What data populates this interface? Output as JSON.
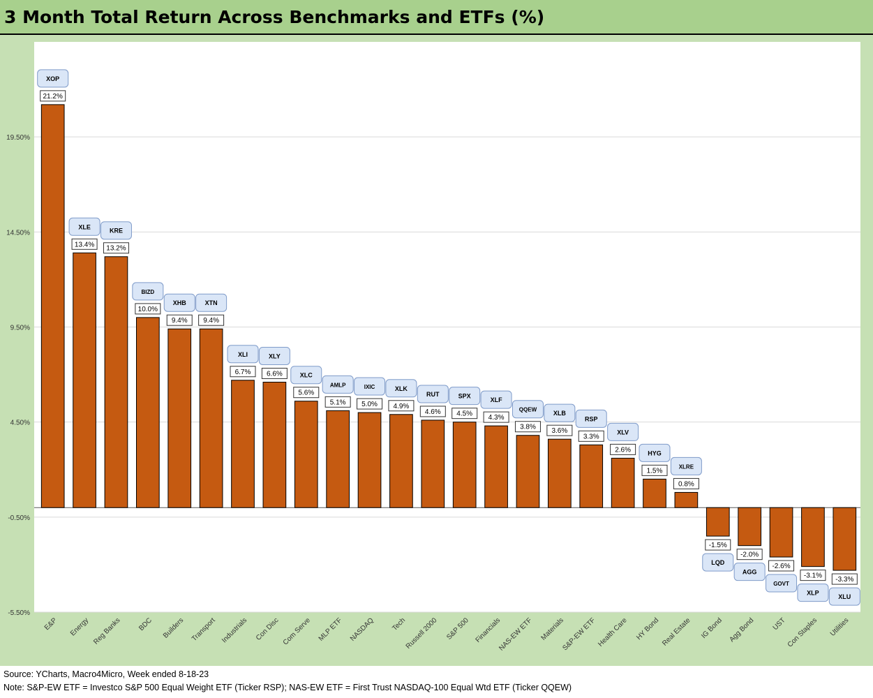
{
  "title": "3 Month Total Return Across Benchmarks and ETFs (%)",
  "colors": {
    "header_bg": "#a8d08d",
    "frame_bg": "#c6e0b4",
    "bar_fill": "#c55a11",
    "label_box_bg": "#dae6f7",
    "label_box_border": "#7f9bc9"
  },
  "footer": {
    "source": "Source: YCharts, Macro4Micro, Week ended 8-18-23",
    "note": "Note: S&P-EW ETF = Investco S&P 500 Equal Weight ETF (Ticker RSP); NAS-EW ETF = First Trust NASDAQ-100 Equal Wtd ETF (Ticker QQEW)"
  },
  "chart_data": {
    "type": "bar",
    "title": "3 Month Total Return Across Benchmarks and ETFs (%)",
    "xlabel": "",
    "ylabel": "",
    "ylim": [
      -5.5,
      24.5
    ],
    "y_ticks": [
      19.5,
      14.5,
      9.5,
      4.5,
      -0.5,
      -5.5
    ],
    "y_tick_labels": [
      "19.50%",
      "14.50%",
      "9.50%",
      "4.50%",
      "-0.50%",
      "-5.50%"
    ],
    "grid": true,
    "legend": "none",
    "categories": [
      "E&P",
      "Energy",
      "Reg Banks",
      "BDC",
      "Builders",
      "Transport",
      "Industrials",
      "Con Disc",
      "Com Serve",
      "MLP ETF",
      "NASDAQ",
      "Tech",
      "Russell 2000",
      "S&P 500",
      "Financials",
      "NAS-EW ETF",
      "Materials",
      "S&P-EW ETF",
      "Health Care",
      "HY Bond",
      "Real Estate",
      "IG Bond",
      "Agg Bond",
      "UST",
      "Con Staples",
      "Utilities"
    ],
    "tickers": [
      "XOP",
      "XLE",
      "KRE",
      "BIZD",
      "XHB",
      "XTN",
      "XLI",
      "XLY",
      "XLC",
      "AMLP",
      "IXIC",
      "XLK",
      "RUT",
      "SPX",
      "XLF",
      "QQEW",
      "XLB",
      "RSP",
      "XLV",
      "HYG",
      "XLRE",
      "LQD",
      "AGG",
      "GOVT",
      "XLP",
      "XLU"
    ],
    "values": [
      21.2,
      13.4,
      13.2,
      10.0,
      9.4,
      9.4,
      6.7,
      6.6,
      5.6,
      5.1,
      5.0,
      4.9,
      4.6,
      4.5,
      4.3,
      3.8,
      3.6,
      3.3,
      2.6,
      1.5,
      0.8,
      -1.5,
      -2.0,
      -2.6,
      -3.1,
      -3.3
    ],
    "value_labels": [
      "21.2%",
      "13.4%",
      "13.2%",
      "10.0%",
      "9.4%",
      "9.4%",
      "6.7%",
      "6.6%",
      "5.6%",
      "5.1%",
      "5.0%",
      "4.9%",
      "4.6%",
      "4.5%",
      "4.3%",
      "3.8%",
      "3.6%",
      "3.3%",
      "2.6%",
      "1.5%",
      "0.8%",
      "-1.5%",
      "-2.0%",
      "-2.6%",
      "-3.1%",
      "-3.3%"
    ]
  }
}
